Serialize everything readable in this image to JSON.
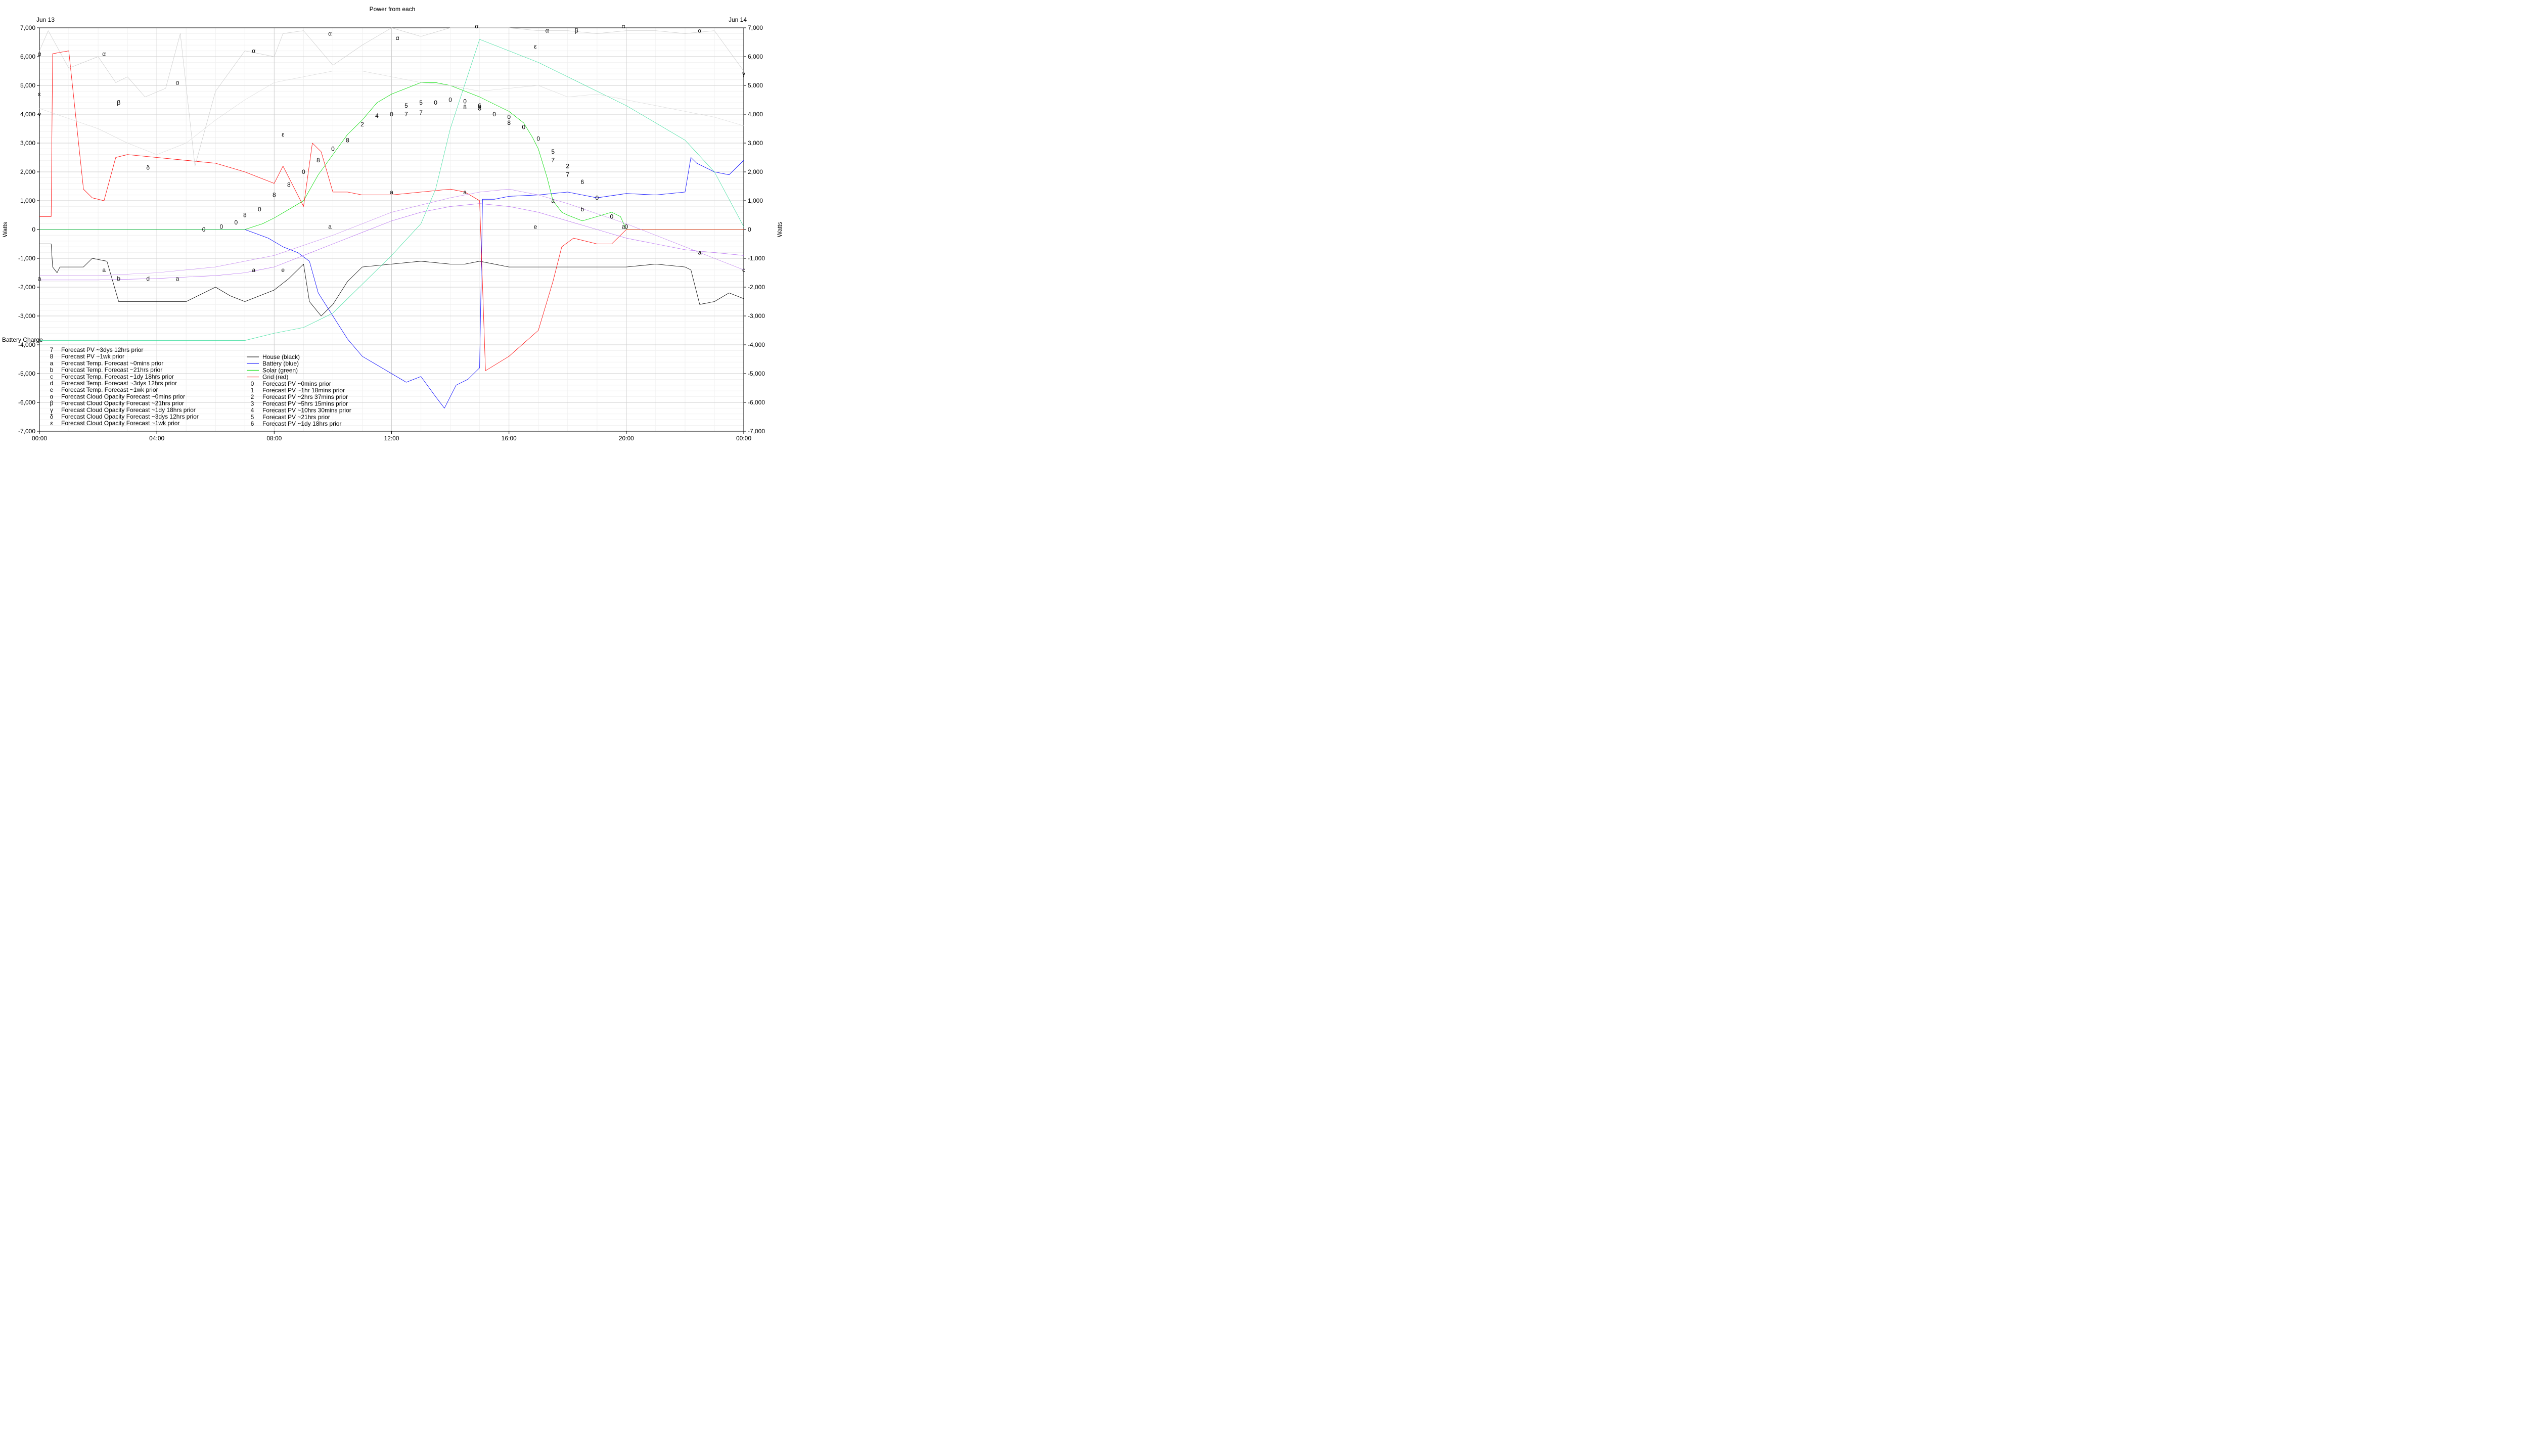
{
  "chart_data": {
    "type": "line",
    "title": "Power from each",
    "ylabel": "Watts",
    "x_tick_labels": [
      "00:00",
      "04:00",
      "08:00",
      "12:00",
      "16:00",
      "20:00",
      "00:00"
    ],
    "x_range_hours": [
      0,
      24
    ],
    "date_left": "Jun 13",
    "date_right": "Jun 14",
    "ylim": [
      -7000,
      7000
    ],
    "y_ticks": [
      -7000,
      -6000,
      -5000,
      -4000,
      -3000,
      -2000,
      -1000,
      0,
      1000,
      2000,
      3000,
      4000,
      5000,
      6000,
      7000
    ],
    "y_tick_labels": [
      "-7,000",
      "-6,000",
      "-5,000",
      "-4,000",
      "-3,000",
      "-2,000",
      "-1,000",
      "0",
      "1,000",
      "2,000",
      "3,000",
      "4,000",
      "5,000",
      "6,000",
      "7,000"
    ],
    "grid": true,
    "battery_charge_label": "Battery Charge",
    "legend_left": [
      {
        "sym": "7",
        "label": "Forecast PV ~3dys 12hrs prior"
      },
      {
        "sym": "8",
        "label": "Forecast PV ~1wk prior"
      },
      {
        "sym": "a",
        "label": "Forecast Temp. Forecast ~0mins prior"
      },
      {
        "sym": "b",
        "label": "Forecast Temp. Forecast ~21hrs prior"
      },
      {
        "sym": "c",
        "label": "Forecast Temp. Forecast ~1dy 18hrs prior"
      },
      {
        "sym": "d",
        "label": "Forecast Temp. Forecast ~3dys 12hrs prior"
      },
      {
        "sym": "e",
        "label": "Forecast Temp. Forecast ~1wk prior"
      },
      {
        "sym": "α",
        "label": "Forecast Cloud Opacity Forecast ~0mins prior"
      },
      {
        "sym": "β",
        "label": "Forecast Cloud Opacity Forecast ~21hrs prior"
      },
      {
        "sym": "γ",
        "label": "Forecast Cloud Opacity Forecast ~1dy 18hrs prior"
      },
      {
        "sym": "δ",
        "label": "Forecast Cloud Opacity Forecast ~3dys 12hrs prior"
      },
      {
        "sym": "ε",
        "label": "Forecast Cloud Opacity Forecast ~1wk prior"
      }
    ],
    "legend_right": [
      {
        "sym": "",
        "label": "House (black)",
        "color": "#000000"
      },
      {
        "sym": "",
        "label": "Battery (blue)",
        "color": "#0000ff"
      },
      {
        "sym": "",
        "label": "Solar (green)",
        "color": "#00dd00"
      },
      {
        "sym": "",
        "label": "Grid (red)",
        "color": "#ff0000"
      },
      {
        "sym": "0",
        "label": "Forecast PV ~0mins prior"
      },
      {
        "sym": "1",
        "label": "Forecast PV ~1hr 18mins prior"
      },
      {
        "sym": "2",
        "label": "Forecast PV ~2hrs 37mins prior"
      },
      {
        "sym": "3",
        "label": "Forecast PV ~5hrs 15mins prior"
      },
      {
        "sym": "4",
        "label": "Forecast PV ~10hrs 30mins prior"
      },
      {
        "sym": "5",
        "label": "Forecast PV ~21hrs prior"
      },
      {
        "sym": "6",
        "label": "Forecast PV ~1dy 18hrs prior"
      }
    ],
    "series": [
      {
        "name": "House (black)",
        "color": "#000000",
        "width": 0.8,
        "x": [
          0,
          0.4,
          0.45,
          0.6,
          0.7,
          1.5,
          1.8,
          2.3,
          2.7,
          3.0,
          4.0,
          5.0,
          6.0,
          6.5,
          7.0,
          7.5,
          8.0,
          8.5,
          9.0,
          9.2,
          9.6,
          10.0,
          10.5,
          11.0,
          12.0,
          13.0,
          14.0,
          14.5,
          15.0,
          16.0,
          18.0,
          20.0,
          21.0,
          22.0,
          22.2,
          22.5,
          23.0,
          23.5,
          24.0
        ],
        "y": [
          -500,
          -500,
          -1300,
          -1500,
          -1300,
          -1300,
          -1000,
          -1100,
          -2500,
          -2500,
          -2500,
          -2500,
          -2000,
          -2300,
          -2500,
          -2300,
          -2100,
          -1700,
          -1200,
          -2500,
          -3000,
          -2600,
          -1800,
          -1300,
          -1200,
          -1100,
          -1200,
          -1200,
          -1100,
          -1300,
          -1300,
          -1300,
          -1200,
          -1300,
          -1400,
          -2600,
          -2500,
          -2200,
          -2400
        ]
      },
      {
        "name": "Battery (blue)",
        "color": "#0000ff",
        "width": 0.8,
        "x": [
          0,
          5.0,
          7.0,
          7.8,
          8.3,
          8.8,
          9.2,
          9.5,
          10.0,
          10.5,
          11.0,
          11.5,
          12.0,
          12.5,
          13.0,
          13.5,
          13.8,
          14.2,
          14.6,
          15.0,
          15.1,
          15.5,
          16.0,
          17.0,
          18.0,
          19.0,
          20.0,
          21.0,
          22.0,
          22.2,
          22.4,
          23.0,
          23.5,
          24.0
        ],
        "y": [
          0,
          0,
          0,
          -300,
          -600,
          -800,
          -1100,
          -2200,
          -3000,
          -3800,
          -4400,
          -4700,
          -5000,
          -5300,
          -5100,
          -5800,
          -6200,
          -5400,
          -5200,
          -4800,
          1050,
          1050,
          1150,
          1200,
          1300,
          1100,
          1250,
          1200,
          1300,
          2500,
          2300,
          2000,
          1900,
          2400
        ]
      },
      {
        "name": "Solar (green)",
        "color": "#00dd00",
        "width": 0.8,
        "x": [
          0,
          7.0,
          7.3,
          7.6,
          8.0,
          8.5,
          9.0,
          9.5,
          10.0,
          10.5,
          11.0,
          11.5,
          12.0,
          12.5,
          13.0,
          13.5,
          14.0,
          14.5,
          15.0,
          15.4,
          16.0,
          16.5,
          16.8,
          17.0,
          17.3,
          17.5,
          17.8,
          18.0,
          18.5,
          19.0,
          19.5,
          19.8,
          20.0,
          24.0
        ],
        "y": [
          0,
          0,
          100,
          200,
          400,
          700,
          1000,
          1900,
          2600,
          3300,
          3800,
          4400,
          4700,
          4900,
          5100,
          5100,
          5000,
          4800,
          4600,
          4400,
          4100,
          3700,
          3200,
          2800,
          1800,
          1000,
          600,
          500,
          300,
          450,
          600,
          450,
          0,
          0
        ]
      },
      {
        "name": "Grid (red)",
        "color": "#ff0000",
        "width": 0.8,
        "x": [
          0,
          0.4,
          0.45,
          1.0,
          1.5,
          1.8,
          2.2,
          2.6,
          3.0,
          4.0,
          5.0,
          6.0,
          7.0,
          7.5,
          8.0,
          8.3,
          9.0,
          9.3,
          9.6,
          10.0,
          10.5,
          11.0,
          12.0,
          13.0,
          14.0,
          14.5,
          15.0,
          15.2,
          16.0,
          17.0,
          17.5,
          17.8,
          18.2,
          19.0,
          19.5,
          20.0,
          24.0
        ],
        "y": [
          450,
          450,
          6100,
          6200,
          1400,
          1100,
          1000,
          2500,
          2600,
          2500,
          2400,
          2300,
          2000,
          1800,
          1600,
          2200,
          800,
          3000,
          2700,
          1300,
          1300,
          1200,
          1200,
          1300,
          1400,
          1300,
          1000,
          -4900,
          -4400,
          -3500,
          -1800,
          -600,
          -300,
          -500,
          -500,
          0,
          0
        ]
      },
      {
        "name": "",
        "color": "#33dd99",
        "width": 0.7,
        "x": [
          0,
          7.0,
          8.0,
          9.0,
          10.0,
          11.0,
          12.0,
          13.0,
          13.5,
          14.0,
          15.0,
          16.0,
          17.0,
          18.0,
          19.0,
          20.0,
          21.0,
          22.0,
          23.0,
          24.0
        ],
        "y": [
          -3850,
          -3850,
          -3600,
          -3400,
          -2900,
          -1900,
          -900,
          200,
          1400,
          3500,
          6600,
          6200,
          5800,
          5300,
          4800,
          4300,
          3700,
          3100,
          2000,
          100
        ]
      },
      {
        "name": "",
        "color": "#c8c8c8",
        "width": 0.7,
        "x": [
          0,
          0.3,
          1.0,
          2.0,
          2.6,
          3.0,
          3.6,
          4.3,
          4.8,
          5.3,
          6.0,
          7.0,
          8.0,
          8.3,
          9.0,
          10.0,
          11.0,
          12.0,
          13.0,
          14.0,
          15.0,
          16.0,
          17.0,
          18.0,
          19.0,
          20.0,
          21.0,
          22.0,
          23.0,
          24.0
        ],
        "y": [
          6200,
          6900,
          5600,
          6000,
          5100,
          5300,
          4600,
          4900,
          6800,
          2200,
          4800,
          6200,
          6000,
          6800,
          6900,
          5700,
          6400,
          7000,
          6700,
          7000,
          7000,
          7000,
          6900,
          6900,
          6800,
          6900,
          6900,
          6800,
          6900,
          5500
        ]
      },
      {
        "name": "",
        "color": "#dadada",
        "width": 0.7,
        "x": [
          0,
          2.0,
          3.0,
          4.0,
          5.0,
          6.0,
          7.0,
          8.0,
          9.0,
          10.0,
          11.0,
          12.0,
          13.0,
          14.0,
          15.0,
          16.0,
          17.0,
          18.0,
          19.0,
          20.0,
          21.0,
          22.0,
          23.0,
          24.0
        ],
        "y": [
          4200,
          3500,
          3000,
          2600,
          3000,
          3800,
          4500,
          5100,
          5300,
          5500,
          5500,
          5300,
          5100,
          5000,
          4800,
          4900,
          5000,
          4600,
          4700,
          4500,
          4300,
          4100,
          3900,
          3600
        ]
      },
      {
        "name": "",
        "color": "#aa55ee",
        "width": 0.6,
        "x": [
          0,
          2.0,
          4.0,
          6.0,
          7.0,
          8.0,
          9.0,
          10.0,
          11.0,
          12.0,
          13.0,
          14.0,
          15.0,
          16.0,
          17.0,
          18.0,
          19.0,
          20.0,
          21.0,
          22.0,
          23.0,
          24.0
        ],
        "y": [
          -1750,
          -1750,
          -1700,
          -1600,
          -1500,
          -1300,
          -900,
          -500,
          -100,
          300,
          600,
          800,
          900,
          800,
          600,
          300,
          0,
          -300,
          -500,
          -700,
          -800,
          -900
        ]
      },
      {
        "name": "",
        "color": "#bb77ee",
        "width": 0.6,
        "x": [
          0,
          2.0,
          4.0,
          6.0,
          8.0,
          10.0,
          12.0,
          14.0,
          15.0,
          16.0,
          17.0,
          18.0,
          20.0,
          22.0,
          24.0
        ],
        "y": [
          -1600,
          -1600,
          -1500,
          -1300,
          -900,
          -200,
          600,
          1100,
          1300,
          1400,
          1200,
          900,
          200,
          -600,
          -1400
        ]
      }
    ],
    "markers": [
      {
        "s": "0",
        "x": 5.6,
        "y": 0
      },
      {
        "s": "0",
        "x": 6.2,
        "y": 100
      },
      {
        "s": "0",
        "x": 6.7,
        "y": 250
      },
      {
        "s": "8",
        "x": 7.0,
        "y": 500
      },
      {
        "s": "0",
        "x": 7.5,
        "y": 700
      },
      {
        "s": "8",
        "x": 8.0,
        "y": 1200
      },
      {
        "s": "8",
        "x": 8.5,
        "y": 1550
      },
      {
        "s": "0",
        "x": 9.0,
        "y": 2000
      },
      {
        "s": "8",
        "x": 9.5,
        "y": 2400
      },
      {
        "s": "0",
        "x": 10.0,
        "y": 2800
      },
      {
        "s": "8",
        "x": 10.5,
        "y": 3100
      },
      {
        "s": "2",
        "x": 11.0,
        "y": 3650
      },
      {
        "s": "4",
        "x": 11.5,
        "y": 3950
      },
      {
        "s": "0",
        "x": 12.0,
        "y": 4000
      },
      {
        "s": "5",
        "x": 12.5,
        "y": 4300
      },
      {
        "s": "5",
        "x": 13.0,
        "y": 4400
      },
      {
        "s": "0",
        "x": 13.5,
        "y": 4400
      },
      {
        "s": "0",
        "x": 14.0,
        "y": 4500
      },
      {
        "s": "0",
        "x": 14.5,
        "y": 4450
      },
      {
        "s": "6",
        "x": 15.0,
        "y": 4300
      },
      {
        "s": "0",
        "x": 15.5,
        "y": 4000
      },
      {
        "s": "0",
        "x": 16.0,
        "y": 3900
      },
      {
        "s": "0",
        "x": 16.5,
        "y": 3550
      },
      {
        "s": "0",
        "x": 17.0,
        "y": 3150
      },
      {
        "s": "5",
        "x": 17.5,
        "y": 2700
      },
      {
        "s": "2",
        "x": 18.0,
        "y": 2200
      },
      {
        "s": "6",
        "x": 18.5,
        "y": 1650
      },
      {
        "s": "0",
        "x": 19.0,
        "y": 1100
      },
      {
        "s": "0",
        "x": 19.5,
        "y": 450
      },
      {
        "s": "0",
        "x": 20.0,
        "y": 100
      },
      {
        "s": "7",
        "x": 12.5,
        "y": 4000
      },
      {
        "s": "7",
        "x": 13.0,
        "y": 4050
      },
      {
        "s": "7",
        "x": 17.5,
        "y": 2400
      },
      {
        "s": "7",
        "x": 18.0,
        "y": 1900
      },
      {
        "s": "8",
        "x": 14.5,
        "y": 4250
      },
      {
        "s": "8",
        "x": 15.0,
        "y": 4200
      },
      {
        "s": "8",
        "x": 16.0,
        "y": 3700
      },
      {
        "s": "a",
        "x": 0,
        "y": -1700
      },
      {
        "s": "a",
        "x": 2.2,
        "y": -1400
      },
      {
        "s": "b",
        "x": 2.7,
        "y": -1700
      },
      {
        "s": "d",
        "x": 3.7,
        "y": -1700
      },
      {
        "s": "a",
        "x": 4.7,
        "y": -1700
      },
      {
        "s": "a",
        "x": 7.3,
        "y": -1400
      },
      {
        "s": "e",
        "x": 8.3,
        "y": -1400
      },
      {
        "s": "a",
        "x": 9.9,
        "y": 100
      },
      {
        "s": "a",
        "x": 12.0,
        "y": 1300
      },
      {
        "s": "a",
        "x": 14.5,
        "y": 1300
      },
      {
        "s": "e",
        "x": 16.9,
        "y": 100
      },
      {
        "s": "a",
        "x": 17.5,
        "y": 1000
      },
      {
        "s": "b",
        "x": 18.5,
        "y": 700
      },
      {
        "s": "a",
        "x": 19.9,
        "y": 100
      },
      {
        "s": "a",
        "x": 22.5,
        "y": -800
      },
      {
        "s": "c",
        "x": 24.0,
        "y": -1400
      },
      {
        "s": "α",
        "x": 0,
        "y": 6100
      },
      {
        "s": "α",
        "x": 2.2,
        "y": 6100
      },
      {
        "s": "α",
        "x": 4.7,
        "y": 5100
      },
      {
        "s": "α",
        "x": 7.3,
        "y": 6200
      },
      {
        "s": "α",
        "x": 9.9,
        "y": 6800
      },
      {
        "s": "α",
        "x": 12.2,
        "y": 6650
      },
      {
        "s": "α",
        "x": 14.9,
        "y": 7050
      },
      {
        "s": "α",
        "x": 17.3,
        "y": 6900
      },
      {
        "s": "β",
        "x": 2.7,
        "y": 4400
      },
      {
        "s": "β",
        "x": 18.3,
        "y": 6900
      },
      {
        "s": "α",
        "x": 19.9,
        "y": 7050
      },
      {
        "s": "α",
        "x": 22.5,
        "y": 6900
      },
      {
        "s": "δ",
        "x": 3.7,
        "y": 2150
      },
      {
        "s": "ε",
        "x": 0,
        "y": 4700
      },
      {
        "s": "γ",
        "x": 0,
        "y": 4000
      },
      {
        "s": "ε",
        "x": 8.3,
        "y": 3300
      },
      {
        "s": "ε",
        "x": 16.9,
        "y": 6350
      },
      {
        "s": "γ",
        "x": 24.0,
        "y": 5400
      }
    ]
  }
}
